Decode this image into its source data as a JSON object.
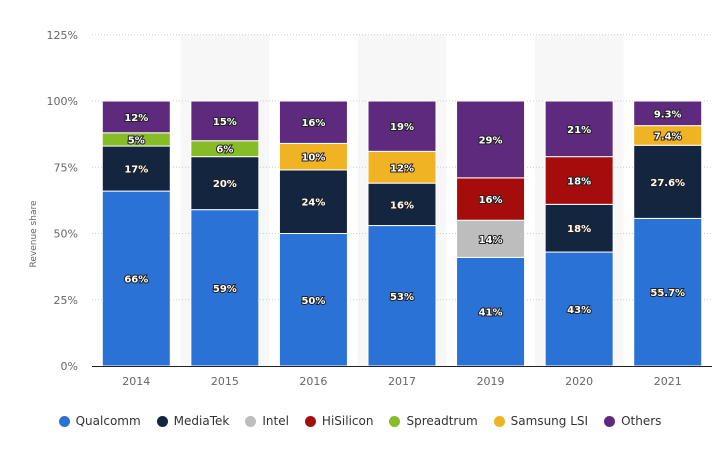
{
  "chart_data": {
    "type": "bar",
    "stacked": true,
    "title": "",
    "xlabel": "",
    "ylabel": "Revenue share",
    "ylim": [
      0,
      125
    ],
    "yticks": [
      "0%",
      "25%",
      "50%",
      "75%",
      "100%",
      "125%"
    ],
    "ytick_values": [
      0,
      25,
      50,
      75,
      100,
      125
    ],
    "grid": true,
    "legend_position": "bottom",
    "categories": [
      "2014",
      "2015",
      "2016",
      "2017",
      "2019",
      "2020",
      "2021"
    ],
    "series": [
      {
        "name": "Qualcomm",
        "color": "#2b72d6",
        "values": [
          66,
          59,
          50,
          53,
          41,
          43,
          55.7
        ],
        "labels": [
          "66%",
          "59%",
          "50%",
          "53%",
          "41%",
          "43%",
          "55.7%"
        ]
      },
      {
        "name": "MediaTek",
        "color": "#13253f",
        "values": [
          17,
          20,
          24,
          16,
          null,
          18,
          27.6
        ],
        "labels": [
          "17%",
          "20%",
          "24%",
          "16%",
          null,
          "18%",
          "27.6%"
        ]
      },
      {
        "name": "Intel",
        "color": "#bdbdbd",
        "values": [
          null,
          null,
          null,
          null,
          14,
          null,
          null
        ],
        "labels": [
          null,
          null,
          null,
          null,
          "14%",
          null,
          null
        ]
      },
      {
        "name": "HiSilicon",
        "color": "#a50d0d",
        "values": [
          null,
          null,
          null,
          null,
          16,
          18,
          null
        ],
        "labels": [
          null,
          null,
          null,
          null,
          "16%",
          "18%",
          null
        ]
      },
      {
        "name": "Spreadtrum",
        "color": "#86bc25",
        "values": [
          5,
          6,
          null,
          null,
          null,
          null,
          null
        ],
        "labels": [
          "5%",
          "6%",
          null,
          null,
          null,
          null,
          null
        ]
      },
      {
        "name": "Samsung LSI",
        "color": "#f0b323",
        "values": [
          null,
          null,
          10,
          12,
          null,
          null,
          7.4
        ],
        "labels": [
          null,
          null,
          "10%",
          "12%",
          null,
          null,
          "7.4%"
        ]
      },
      {
        "name": "Others",
        "color": "#5e2a7e",
        "values": [
          12,
          15,
          16,
          19,
          29,
          21,
          9.3
        ],
        "labels": [
          "12%",
          "15%",
          "16%",
          "19%",
          "29%",
          "21%",
          "9.3%"
        ]
      }
    ]
  }
}
